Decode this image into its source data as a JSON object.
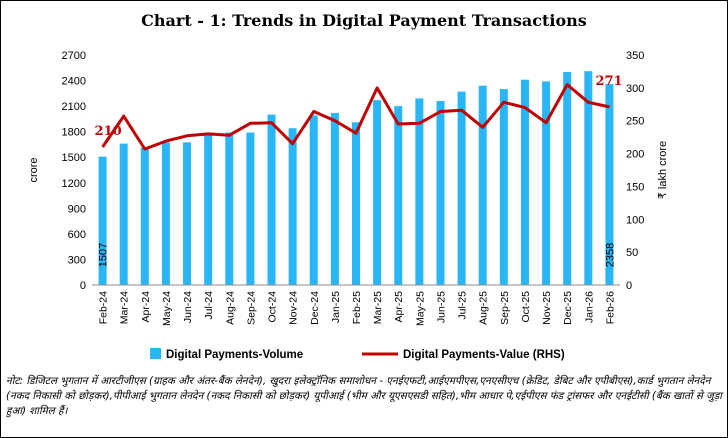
{
  "chart_data": {
    "type": "bar",
    "title": "Chart - 1: Trends in Digital Payment Transactions",
    "categories": [
      "Feb-24",
      "Mar-24",
      "Apr-24",
      "May-24",
      "Jun-24",
      "Jul-24",
      "Aug-24",
      "Sep-24",
      "Oct-24",
      "Nov-24",
      "Dec-24",
      "Jan-25",
      "Feb-25",
      "Mar-25",
      "Apr-25",
      "May-25",
      "Jun-25",
      "Jul-25",
      "Aug-25",
      "Sep-25",
      "Oct-25",
      "Nov-25",
      "Dec-25",
      "Jan-26",
      "Feb-26"
    ],
    "series": [
      {
        "name": "Digital Payments-Volume",
        "type": "bar",
        "axis": "left",
        "color": "#29b6f6",
        "values": [
          1507,
          1660,
          1610,
          1675,
          1675,
          1770,
          1790,
          1790,
          2000,
          1840,
          1990,
          2020,
          1910,
          2170,
          2100,
          2190,
          2160,
          2270,
          2340,
          2300,
          2410,
          2390,
          2500,
          2510,
          2358
        ]
      },
      {
        "name": "Digital Payments-Value (RHS)",
        "type": "line",
        "axis": "right",
        "color": "#c00000",
        "values": [
          210,
          257,
          207,
          219,
          227,
          230,
          228,
          246,
          247,
          215,
          264,
          250,
          231,
          300,
          245,
          246,
          264,
          266,
          240,
          278,
          270,
          247,
          305,
          278,
          271
        ]
      }
    ],
    "y_left": {
      "label": "crore",
      "ylim": [
        0,
        2700
      ],
      "ticks": [
        "0",
        "300",
        "600",
        "900",
        "1200",
        "1500",
        "1800",
        "2100",
        "2400",
        "2700"
      ]
    },
    "y_right": {
      "label": "₹ lakh crore",
      "ylim": [
        0,
        350
      ],
      "ticks": [
        "0",
        "50",
        "100",
        "150",
        "200",
        "250",
        "300",
        "350"
      ]
    },
    "data_labels": {
      "line_first": "210",
      "line_last": "271",
      "bar_first": "1507",
      "bar_last": "2358"
    },
    "legend_position": "bottom",
    "grid": false
  },
  "note": "नोट: डिजिटल भुगतान में आरटीजीएस (ग्राहक और अंतर-बैंक लेनदेन), खुदरा इलेक्ट्रॉनिक समाशोधन - एनईएफटी,आईएमपीएस,एनएसीएच (क्रेडिट, डेबिट और एपीबीएस),कार्ड भुगतान लेनदेन (नकद निकासी को छोड़कर),पीपीआई भुगतान लेनदेन (नकद निकासी को छोड़कर) यूपीआई (भीम और यूएसएसडी सहित),भीम आधार पे,एईपीएस फंड ट्रांसफर और एनईटीसी (बैंक खातों से जुड़ा हुआ) शामिल हैं।"
}
